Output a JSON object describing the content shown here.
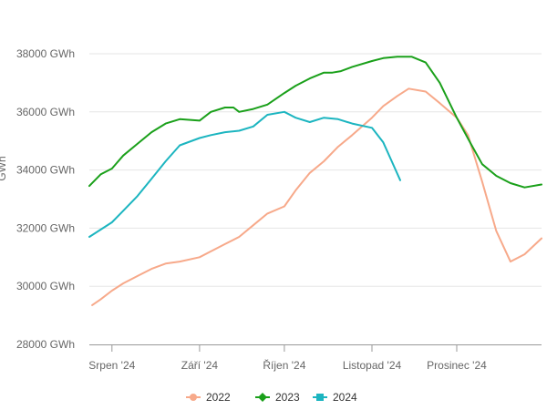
{
  "chart_data": {
    "type": "line",
    "title": "",
    "xlabel": "",
    "ylabel": "GWh",
    "ylim": [
      28000,
      38000
    ],
    "y_ticks": [
      28000,
      30000,
      32000,
      34000,
      36000,
      38000
    ],
    "y_tick_labels": [
      "28000 GWh",
      "30000 GWh",
      "32000 GWh",
      "34000 GWh",
      "36000 GWh",
      "38000 GWh"
    ],
    "xlim": [
      "2024-07-24",
      "2024-12-31"
    ],
    "x_ticks": [
      "2024-08-01",
      "2024-09-01",
      "2024-10-01",
      "2024-11-01",
      "2024-12-01"
    ],
    "x_tick_labels": [
      "Srpen '24",
      "Září '24",
      "Říjen '24",
      "Listopad '24",
      "Prosinec '24"
    ],
    "grid": true,
    "legend_position": "bottom",
    "series": [
      {
        "name": "2022",
        "color": "#f7a98a",
        "marker": "circle",
        "x": [
          "2024-07-25",
          "2024-07-28",
          "2024-08-01",
          "2024-08-05",
          "2024-08-10",
          "2024-08-15",
          "2024-08-20",
          "2024-08-25",
          "2024-09-01",
          "2024-09-05",
          "2024-09-10",
          "2024-09-15",
          "2024-09-20",
          "2024-09-25",
          "2024-10-01",
          "2024-10-05",
          "2024-10-10",
          "2024-10-15",
          "2024-10-20",
          "2024-10-25",
          "2024-11-01",
          "2024-11-05",
          "2024-11-10",
          "2024-11-14",
          "2024-11-20",
          "2024-11-25",
          "2024-12-01",
          "2024-12-05",
          "2024-12-10",
          "2024-12-15",
          "2024-12-20",
          "2024-12-25",
          "2024-12-31"
        ],
        "values": [
          29350,
          29550,
          29850,
          30100,
          30350,
          30600,
          30780,
          30850,
          31000,
          31200,
          31450,
          31700,
          32100,
          32500,
          32750,
          33300,
          33900,
          34300,
          34800,
          35200,
          35800,
          36200,
          36550,
          36800,
          36700,
          36300,
          35800,
          35200,
          33600,
          31900,
          30850,
          31100,
          31650
        ]
      },
      {
        "name": "2023",
        "color": "#1aa01a",
        "marker": "diamond",
        "x": [
          "2024-07-24",
          "2024-07-28",
          "2024-08-01",
          "2024-08-05",
          "2024-08-10",
          "2024-08-15",
          "2024-08-20",
          "2024-08-25",
          "2024-09-01",
          "2024-09-05",
          "2024-09-10",
          "2024-09-13",
          "2024-09-15",
          "2024-09-20",
          "2024-09-25",
          "2024-10-01",
          "2024-10-05",
          "2024-10-10",
          "2024-10-15",
          "2024-10-18",
          "2024-10-21",
          "2024-10-25",
          "2024-11-01",
          "2024-11-05",
          "2024-11-10",
          "2024-11-15",
          "2024-11-20",
          "2024-11-25",
          "2024-12-01",
          "2024-12-06",
          "2024-12-10",
          "2024-12-15",
          "2024-12-20",
          "2024-12-25",
          "2024-12-31"
        ],
        "values": [
          33450,
          33850,
          34050,
          34500,
          34900,
          35300,
          35600,
          35750,
          35700,
          36000,
          36150,
          36150,
          36000,
          36100,
          36250,
          36650,
          36900,
          37150,
          37350,
          37350,
          37400,
          37550,
          37750,
          37850,
          37900,
          37900,
          37700,
          37000,
          35800,
          34900,
          34200,
          33800,
          33550,
          33400,
          33500
        ]
      },
      {
        "name": "2024",
        "color": "#1cb5c0",
        "marker": "square",
        "x": [
          "2024-07-24",
          "2024-07-28",
          "2024-08-01",
          "2024-08-05",
          "2024-08-10",
          "2024-08-15",
          "2024-08-20",
          "2024-08-25",
          "2024-09-01",
          "2024-09-05",
          "2024-09-10",
          "2024-09-15",
          "2024-09-20",
          "2024-09-25",
          "2024-10-01",
          "2024-10-05",
          "2024-10-10",
          "2024-10-15",
          "2024-10-20",
          "2024-10-25",
          "2024-11-01",
          "2024-11-05",
          "2024-11-08",
          "2024-11-11"
        ],
        "values": [
          31700,
          31950,
          32200,
          32600,
          33100,
          33700,
          34300,
          34850,
          35100,
          35200,
          35300,
          35350,
          35500,
          35900,
          36000,
          35800,
          35650,
          35800,
          35750,
          35600,
          35450,
          34950,
          34300,
          33650
        ]
      }
    ]
  }
}
